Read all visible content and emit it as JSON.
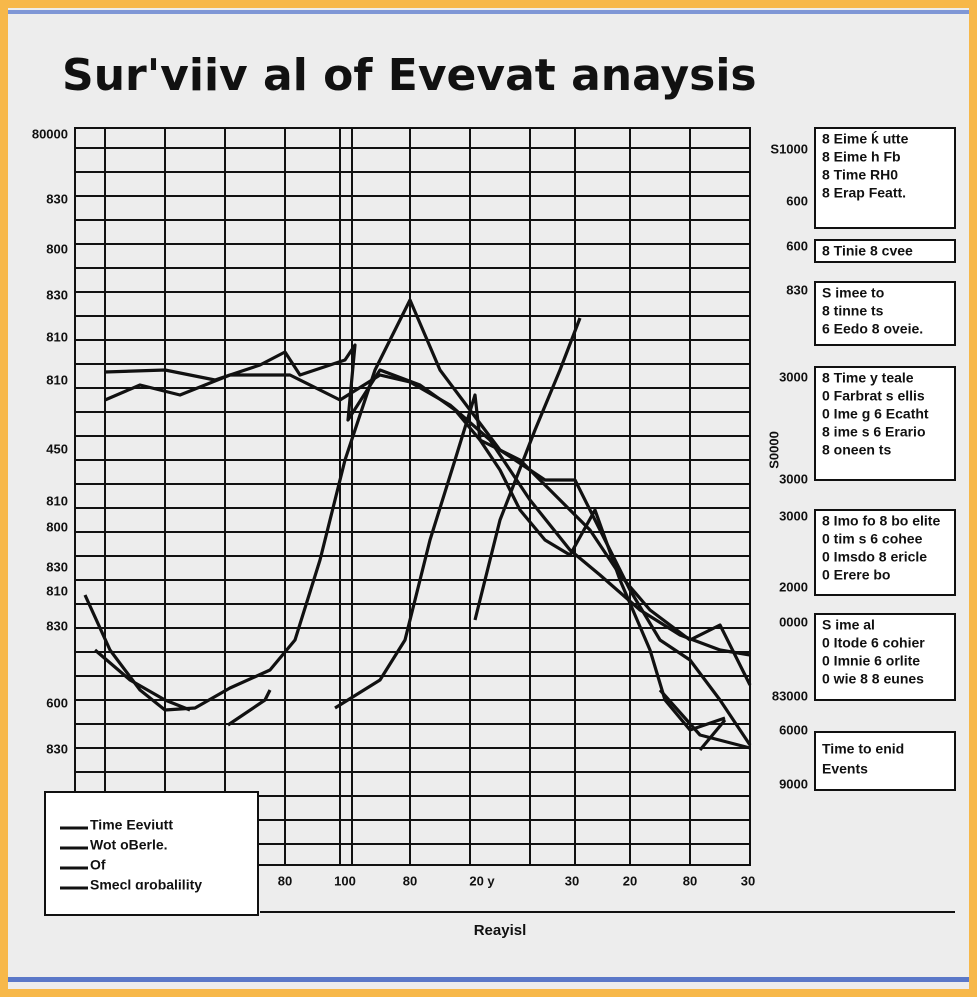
{
  "title": "Sur'viiv al of Evevat anaysis",
  "y_axis_labels": [
    "80000",
    "830",
    "800",
    "830",
    "810",
    "810",
    "450",
    "810",
    "800",
    "830",
    "810",
    "830",
    "600",
    "830"
  ],
  "x_axis_labels": [
    "80",
    "100",
    "80",
    "20 y",
    "30",
    "20",
    "80",
    "30"
  ],
  "x_axis_title": "Reayisl",
  "legend": [
    "Time Eeviutt",
    "Wot oBerle.",
    "Of",
    "Smecl ɑrobalility"
  ],
  "side_labels": [
    "S1000",
    "600",
    "600",
    "830",
    "3000",
    "3000",
    "S0000",
    "3000",
    "2000",
    "0000",
    "83000",
    "6000",
    "9000"
  ],
  "side_boxes": [
    [
      "8 Eime ḱ utte",
      "8 Eime h Fb",
      "8 Time RH0",
      "8 Erap Featt."
    ],
    [
      "8 Tinie 8 cvee"
    ],
    [
      "S imee to",
      "8 tinne ts",
      "6 Eedo 8 oveie."
    ],
    [
      "8 Time y teale",
      "0 Farbrat s ellis",
      "0 Ime g 6 Ecatht",
      "8 ime s 6 Erario",
      "8 oneen ts"
    ],
    [
      "8 Imo fo 8 bo elite",
      "0 tim s 6 cohee",
      "0 Imsdo 8 ericle",
      "0 Erere bo"
    ],
    [
      "S ime al",
      "0 Itode 6 cohier",
      "0 Imnie 6 orlite",
      "0 wie 8 8 eunes"
    ],
    [
      "Time to enid",
      "Events"
    ]
  ]
}
